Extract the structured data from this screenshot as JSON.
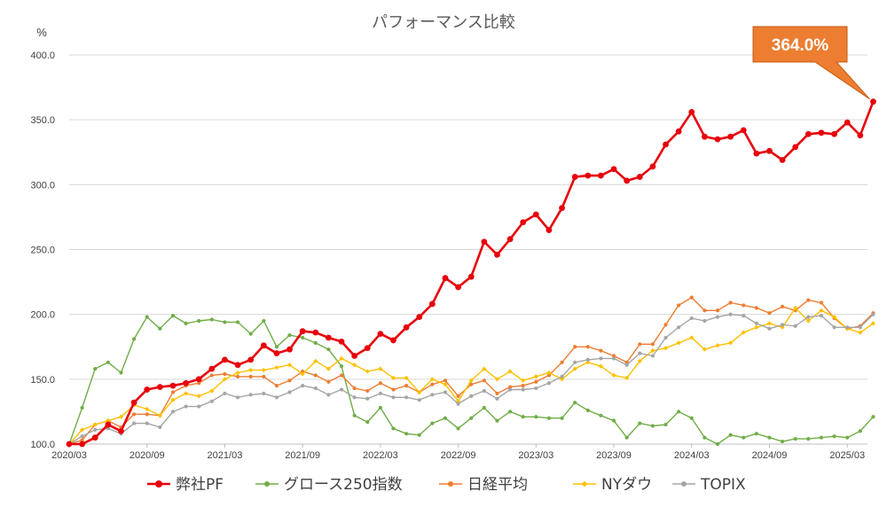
{
  "chart_data": {
    "type": "line",
    "title": "パフォーマンス比較",
    "ylabel": "%",
    "xlabel": "",
    "ylim": [
      100,
      400
    ],
    "yticks": [
      "100.0",
      "150.0",
      "200.0",
      "250.0",
      "300.0",
      "350.0",
      "400.0"
    ],
    "xticks": [
      "2020/03",
      "2020/09",
      "2021/03",
      "2021/09",
      "2022/03",
      "2022/09",
      "2023/03",
      "2023/09",
      "2024/03",
      "2024/09",
      "2025/03"
    ],
    "grid": true,
    "legend_position": "bottom",
    "callout": "364.0%",
    "series": [
      {
        "name": "弊社PF",
        "color": "#e8000b",
        "values": [
          100,
          100,
          105,
          115,
          110,
          132,
          142,
          144,
          145,
          147,
          150,
          158,
          165,
          161,
          165,
          176,
          170,
          173,
          187,
          186,
          182,
          179,
          168,
          174,
          185,
          180,
          190,
          198,
          208,
          228,
          221,
          229,
          256,
          246,
          258,
          271,
          277,
          265,
          282,
          306,
          307,
          307,
          312,
          303,
          306,
          314,
          331,
          341,
          356,
          337,
          335,
          337,
          342,
          324,
          326,
          319,
          329,
          339,
          340,
          339,
          348,
          338,
          364
        ]
      },
      {
        "name": "グロース250指数",
        "color": "#70ad47",
        "values": [
          100,
          128,
          158,
          163,
          155,
          181,
          198,
          189,
          199,
          193,
          195,
          196,
          194,
          194,
          185,
          195,
          175,
          184,
          182,
          178,
          173,
          160,
          122,
          117,
          128,
          112,
          108,
          107,
          116,
          120,
          112,
          120,
          128,
          118,
          125,
          121,
          121,
          120,
          120,
          132,
          126,
          122,
          118,
          105,
          116,
          114,
          115,
          125,
          120,
          105,
          100,
          107,
          105,
          108,
          105,
          102,
          104,
          104,
          105,
          106,
          105,
          110,
          121
        ]
      },
      {
        "name": "日経平均",
        "color": "#ed7d31",
        "values": [
          100,
          103,
          115,
          118,
          113,
          123,
          123,
          122,
          140,
          145,
          147,
          153,
          154,
          152,
          152,
          152,
          145,
          149,
          156,
          153,
          148,
          153,
          143,
          141,
          147,
          142,
          145,
          140,
          146,
          149,
          137,
          146,
          149,
          139,
          144,
          145,
          148,
          153,
          163,
          175,
          175,
          172,
          168,
          163,
          177,
          177,
          192,
          207,
          213,
          203,
          203,
          209,
          207,
          205,
          201,
          206,
          203,
          211,
          209,
          197,
          189,
          191,
          201
        ]
      },
      {
        "name": "NYダウ",
        "color": "#ffc000",
        "values": [
          100,
          111,
          115,
          118,
          121,
          130,
          127,
          122,
          134,
          139,
          137,
          141,
          150,
          155,
          157,
          157,
          159,
          161,
          154,
          164,
          158,
          166,
          161,
          156,
          158,
          151,
          151,
          140,
          150,
          146,
          133,
          149,
          158,
          150,
          156,
          149,
          152,
          155,
          150,
          158,
          163,
          160,
          153,
          151,
          164,
          172,
          174,
          178,
          182,
          173,
          176,
          178,
          186,
          190,
          193,
          190,
          205,
          195,
          203,
          198,
          189,
          186,
          193
        ]
      },
      {
        "name": "TOPIX",
        "color": "#a5a5a5",
        "values": [
          100,
          106,
          111,
          112,
          108,
          116,
          116,
          113,
          125,
          129,
          129,
          133,
          139,
          136,
          138,
          139,
          136,
          140,
          145,
          143,
          138,
          142,
          136,
          135,
          139,
          136,
          136,
          134,
          138,
          140,
          131,
          137,
          141,
          135,
          142,
          142,
          143,
          147,
          152,
          163,
          165,
          166,
          166,
          161,
          170,
          168,
          182,
          190,
          197,
          195,
          198,
          200,
          199,
          193,
          189,
          192,
          191,
          198,
          199,
          190,
          190,
          190,
          200
        ]
      }
    ]
  }
}
